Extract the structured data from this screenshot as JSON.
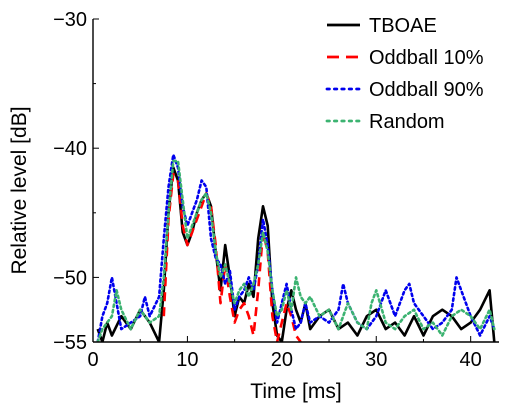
{
  "chart_data": {
    "type": "line",
    "title": "",
    "xlabel": "Time [ms]",
    "ylabel": "Relative level [dB]",
    "xlim": [
      0,
      43
    ],
    "ylim": [
      -55,
      -30
    ],
    "xticks": [
      0,
      10,
      20,
      30,
      40
    ],
    "xtick_labels": [
      "0",
      "10",
      "20",
      "30",
      "40"
    ],
    "yticks": [
      -55,
      -50,
      -40,
      -30
    ],
    "ytick_labels": [
      "−55",
      "−50",
      "−40",
      "−30"
    ],
    "grid": false,
    "legend_position": "top-right",
    "series": [
      {
        "name": "TBOAE",
        "color": "#000000",
        "dash": "solid",
        "x": [
          0.5,
          1,
          1.5,
          2,
          3,
          4,
          5,
          6,
          7,
          7.5,
          8,
          8.5,
          9,
          9.5,
          10,
          10.5,
          11,
          11.5,
          12,
          12.5,
          13,
          13.5,
          14,
          14.5,
          15,
          15.5,
          16,
          16.5,
          17,
          17.5,
          18,
          18.5,
          19,
          19.5,
          20,
          20.5,
          21,
          21.5,
          22,
          22.5,
          23,
          24,
          25,
          26,
          27,
          28,
          29,
          30,
          31,
          32,
          33,
          34,
          35,
          36,
          37,
          38,
          39,
          40,
          41,
          42,
          42.5
        ],
        "y": [
          -54,
          -55,
          -53.5,
          -54.5,
          -53,
          -54,
          -52.5,
          -53.5,
          -55,
          -51,
          -45,
          -41.5,
          -42.5,
          -46.5,
          -47.5,
          -46.5,
          -45,
          -44,
          -43.5,
          -44.5,
          -48,
          -51,
          -47.5,
          -50,
          -53,
          -51.5,
          -52,
          -50.5,
          -51.5,
          -47,
          -44.5,
          -46,
          -52,
          -54.5,
          -55,
          -52.5,
          -51,
          -52.5,
          -53.5,
          -52,
          -54,
          -53,
          -52.5,
          -54,
          -53.5,
          -54.5,
          -53,
          -52.5,
          -54,
          -53.5,
          -54.5,
          -53,
          -54.5,
          -53,
          -52.5,
          -53,
          -54,
          -53.5,
          -52.5,
          -51,
          -55
        ]
      },
      {
        "name": "Oddball 10%",
        "color": "#ff0000",
        "dash": "dashed",
        "x": [
          7.5,
          8,
          8.5,
          9,
          9.5,
          10,
          10.5,
          11,
          11.5,
          12,
          12.5,
          13,
          13.5,
          14,
          14.5,
          15,
          15.5,
          16,
          16.5,
          17,
          17.5,
          18,
          18.5,
          19,
          19.5,
          20,
          20.5,
          21,
          21.5,
          22
        ],
        "y": [
          -53,
          -45.5,
          -42,
          -42.5,
          -46,
          -47.5,
          -46.5,
          -45.5,
          -44.5,
          -43.5,
          -44.5,
          -47.5,
          -52,
          -49,
          -51.5,
          -53.5,
          -52.5,
          -52,
          -53,
          -54.5,
          -51,
          -46.5,
          -48,
          -53,
          -55,
          -53.5,
          -52,
          -53,
          -54.5,
          -55
        ]
      },
      {
        "name": "Oddball 90%",
        "color": "#0000ee",
        "dash": "dotted",
        "x": [
          0.5,
          1,
          1.5,
          2,
          2.5,
          3,
          4,
          5,
          5.5,
          6,
          7,
          7.5,
          8,
          8.5,
          9,
          9.5,
          10,
          10.5,
          11,
          11.5,
          12,
          12.5,
          13,
          13.5,
          14,
          14.5,
          15,
          15.5,
          16,
          16.5,
          17,
          17.5,
          18,
          18.5,
          19,
          19.5,
          20,
          20.5,
          21,
          21.5,
          22,
          22.5,
          23,
          24,
          25,
          26,
          26.5,
          27,
          28,
          29,
          30,
          31,
          32,
          33,
          33.5,
          34,
          35,
          36,
          37,
          38,
          38.5,
          39,
          40,
          41,
          42,
          42.5
        ],
        "y": [
          -55,
          -53,
          -52,
          -50,
          -52,
          -54,
          -53.5,
          -53,
          -51.5,
          -53,
          -51.5,
          -47,
          -43,
          -40.5,
          -41.5,
          -44.5,
          -46,
          -45,
          -44,
          -42.5,
          -43,
          -47,
          -48.5,
          -49,
          -50.5,
          -49.5,
          -52.5,
          -51.5,
          -51,
          -50,
          -51,
          -49,
          -45.5,
          -47.5,
          -51,
          -53.5,
          -52,
          -50.5,
          -52.5,
          -54,
          -53.5,
          -52,
          -53.5,
          -53,
          -53.5,
          -52.5,
          -50.5,
          -52,
          -53.5,
          -54,
          -53,
          -51,
          -53,
          -51,
          -50.5,
          -52,
          -53,
          -54,
          -53.5,
          -52.5,
          -50,
          -51,
          -53,
          -54.5,
          -53,
          -54
        ]
      },
      {
        "name": "Random",
        "color": "#3cb371",
        "dash": "dotted",
        "x": [
          0.5,
          1,
          1.5,
          2,
          2.5,
          3,
          4,
          5,
          6,
          7,
          7.5,
          8,
          8.5,
          9,
          9.5,
          10,
          10.5,
          11,
          11.5,
          12,
          12.5,
          13,
          13.5,
          14,
          14.5,
          15,
          15.5,
          16,
          16.5,
          17,
          17.5,
          18,
          18.5,
          19,
          19.5,
          20,
          20.5,
          21,
          21.5,
          22,
          22.5,
          23,
          24,
          25,
          26,
          27,
          28,
          29,
          29.5,
          30,
          31,
          32,
          33,
          34,
          35,
          36,
          37,
          38,
          39,
          40,
          41,
          42,
          42.5
        ],
        "y": [
          -55,
          -54,
          -53.5,
          -53,
          -51,
          -52.5,
          -54,
          -52.5,
          -53.5,
          -53,
          -50,
          -45,
          -41,
          -41,
          -44,
          -47,
          -46,
          -45,
          -44,
          -43.5,
          -45,
          -48,
          -50,
          -49,
          -50.5,
          -52,
          -51,
          -50.5,
          -51.5,
          -50.5,
          -49,
          -46.5,
          -48,
          -51,
          -53,
          -52.5,
          -51,
          -52.5,
          -50,
          -51.5,
          -52,
          -51.5,
          -53,
          -52.5,
          -54,
          -52,
          -53.5,
          -54,
          -52,
          -51,
          -53.5,
          -54,
          -53,
          -52.5,
          -54,
          -53.5,
          -54.5,
          -53,
          -52.5,
          -53,
          -54,
          -52.5,
          -54
        ]
      }
    ]
  }
}
